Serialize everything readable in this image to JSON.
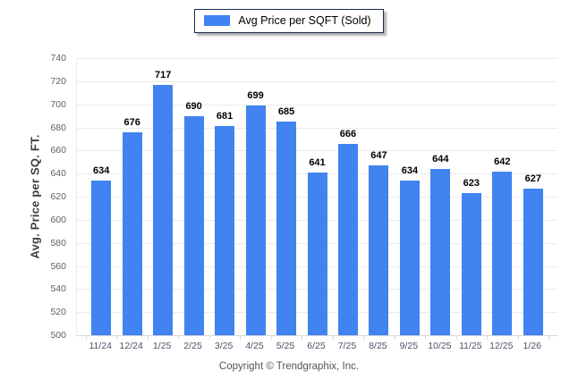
{
  "legend": {
    "label": "Avg Price per SQFT (Sold)"
  },
  "footer": {
    "text": "Copyright © Trendgraphix, Inc."
  },
  "colors": {
    "bar": "#4183f1",
    "grid": "#ebebeb",
    "axis": "#d6d6d6",
    "tick_mark": "#dcdcdc",
    "legend_border": "#1b2a45",
    "value_label": "#000000",
    "y_tick_label": "#5f5f5f",
    "x_tick_label": "#4c5268",
    "axis_title": "#3d3d3d"
  },
  "chart_data": {
    "type": "bar",
    "title": "",
    "xlabel": "",
    "ylabel": "Avg. Price per SQ. FT.",
    "categories": [
      "11/24",
      "12/24",
      "1/25",
      "2/25",
      "3/25",
      "4/25",
      "5/25",
      "6/25",
      "7/25",
      "8/25",
      "9/25",
      "10/25",
      "11/25",
      "12/25",
      "1/26"
    ],
    "values": [
      634,
      676,
      717,
      690,
      681,
      699,
      685,
      641,
      666,
      647,
      634,
      644,
      623,
      642,
      627
    ],
    "series": [
      {
        "name": "Avg Price per SQFT (Sold)",
        "values": [
          634,
          676,
          717,
          690,
          681,
          699,
          685,
          641,
          666,
          647,
          634,
          644,
          623,
          642,
          627
        ]
      }
    ],
    "ylim": [
      500,
      740
    ],
    "ytick_step": 20,
    "grid": true,
    "legend_position": "top",
    "value_labels": true
  }
}
